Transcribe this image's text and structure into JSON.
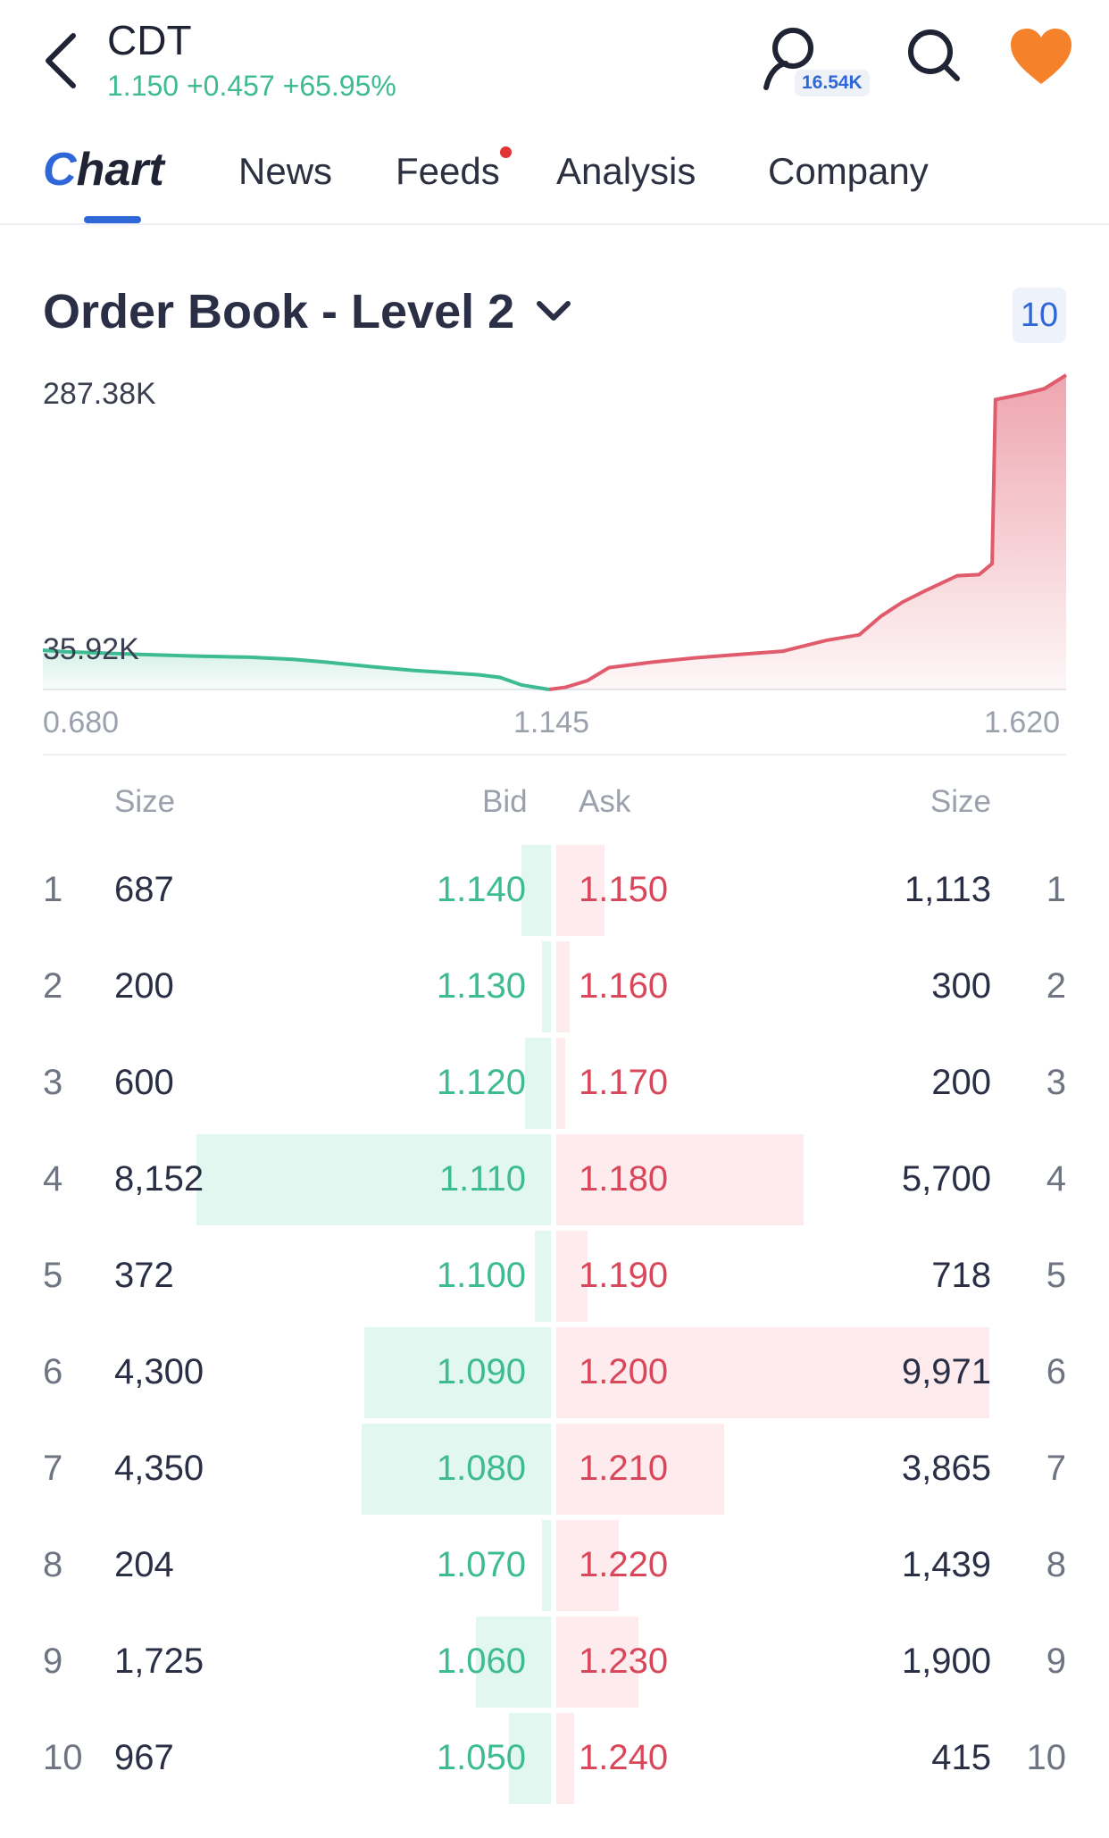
{
  "header": {
    "symbol": "CDT",
    "quote": "1.150 +0.457 +65.95%",
    "follow_count": "16.54K",
    "back_icon": "chevron-left-icon",
    "follow_icon": "person-icon",
    "search_icon": "search-icon",
    "favorite_icon": "heart-icon",
    "favorite_color": "#f5822a"
  },
  "tabs": {
    "chart": "Chart",
    "news": "News",
    "feeds": "Feeds",
    "analysis": "Analysis",
    "company": "Company"
  },
  "order_book": {
    "title": "Order Book - Level 2",
    "depth": "10",
    "headers": {
      "bid_size": "Size",
      "bid": "Bid",
      "ask": "Ask",
      "ask_size": "Size"
    },
    "max_size": 9971,
    "rows": [
      {
        "level": "1",
        "bid_size": "687",
        "bid": "1.140",
        "ask": "1.150",
        "ask_size": "1,113",
        "bid_qty": 687,
        "ask_qty": 1113
      },
      {
        "level": "2",
        "bid_size": "200",
        "bid": "1.130",
        "ask": "1.160",
        "ask_size": "300",
        "bid_qty": 200,
        "ask_qty": 300
      },
      {
        "level": "3",
        "bid_size": "600",
        "bid": "1.120",
        "ask": "1.170",
        "ask_size": "200",
        "bid_qty": 600,
        "ask_qty": 200
      },
      {
        "level": "4",
        "bid_size": "8,152",
        "bid": "1.110",
        "ask": "1.180",
        "ask_size": "5,700",
        "bid_qty": 8152,
        "ask_qty": 5700
      },
      {
        "level": "5",
        "bid_size": "372",
        "bid": "1.100",
        "ask": "1.190",
        "ask_size": "718",
        "bid_qty": 372,
        "ask_qty": 718
      },
      {
        "level": "6",
        "bid_size": "4,300",
        "bid": "1.090",
        "ask": "1.200",
        "ask_size": "9,971",
        "bid_qty": 4300,
        "ask_qty": 9971
      },
      {
        "level": "7",
        "bid_size": "4,350",
        "bid": "1.080",
        "ask": "1.210",
        "ask_size": "3,865",
        "bid_qty": 4350,
        "ask_qty": 3865
      },
      {
        "level": "8",
        "bid_size": "204",
        "bid": "1.070",
        "ask": "1.220",
        "ask_size": "1,439",
        "bid_qty": 204,
        "ask_qty": 1439
      },
      {
        "level": "9",
        "bid_size": "1,725",
        "bid": "1.060",
        "ask": "1.230",
        "ask_size": "1,900",
        "bid_qty": 1725,
        "ask_qty": 1900
      },
      {
        "level": "10",
        "bid_size": "967",
        "bid": "1.050",
        "ask": "1.240",
        "ask_size": "415",
        "bid_qty": 967,
        "ask_qty": 415
      }
    ]
  },
  "chart_data": {
    "type": "area",
    "title": "",
    "y_tick_labels": [
      "287.38K",
      "35.92K"
    ],
    "x_tick_labels": [
      "0.680",
      "1.145",
      "1.620"
    ],
    "xlim": [
      0.68,
      1.62
    ],
    "ylim": [
      0,
      287380
    ],
    "bid_color": "#3dbb92",
    "ask_color": "#e05b6c",
    "series": [
      {
        "side": "bid",
        "x": [
          0.68,
          0.7,
          0.73,
          0.77,
          0.82,
          0.87,
          0.91,
          0.94,
          0.98,
          1.02,
          1.05,
          1.08,
          1.1,
          1.12,
          1.145
        ],
        "y": [
          35920,
          34500,
          33500,
          32000,
          30500,
          29500,
          27500,
          25000,
          21000,
          17500,
          15500,
          13500,
          11000,
          4000,
          0
        ]
      },
      {
        "side": "ask",
        "x": [
          1.145,
          1.16,
          1.18,
          1.2,
          1.24,
          1.28,
          1.32,
          1.36,
          1.4,
          1.43,
          1.45,
          1.47,
          1.49,
          1.52,
          1.54,
          1.552,
          1.555,
          1.58,
          1.6,
          1.62
        ],
        "y": [
          0,
          2000,
          8000,
          20000,
          25000,
          29000,
          32000,
          35000,
          45000,
          50000,
          67000,
          80000,
          90000,
          104000,
          105000,
          115000,
          265000,
          270000,
          275000,
          287380
        ]
      }
    ]
  }
}
